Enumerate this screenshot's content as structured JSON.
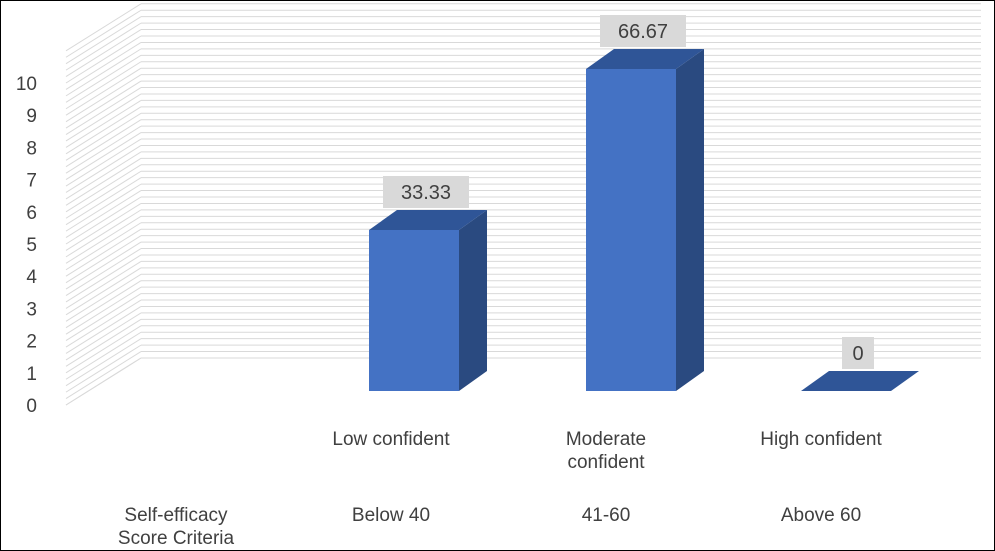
{
  "chart_data": {
    "type": "bar",
    "style": "3d-column",
    "categories": [
      "Low  confident",
      "Moderate\nconfident",
      "High confident"
    ],
    "row_header": "Self-efficacy\nScore Criteria",
    "score_ranges": [
      "Below 40",
      "41-60",
      "Above 60"
    ],
    "values": [
      5,
      10,
      0
    ],
    "data_labels": [
      "33.33",
      "66.67",
      "0"
    ],
    "y_ticks": [
      "0",
      "1",
      "2",
      "3",
      "4",
      "5",
      "6",
      "7",
      "8",
      "9",
      "10"
    ],
    "ylim": [
      0,
      11
    ],
    "grid": "minor-horizontal",
    "title": "",
    "xlabel": "",
    "ylabel": "",
    "colors": {
      "bar_front": "#4472c4",
      "bar_side": "#2a4a80",
      "bar_top": "#2f5597",
      "gridline": "#d9d9d9",
      "label_box": "#d9d9d9",
      "text": "#404040"
    }
  }
}
